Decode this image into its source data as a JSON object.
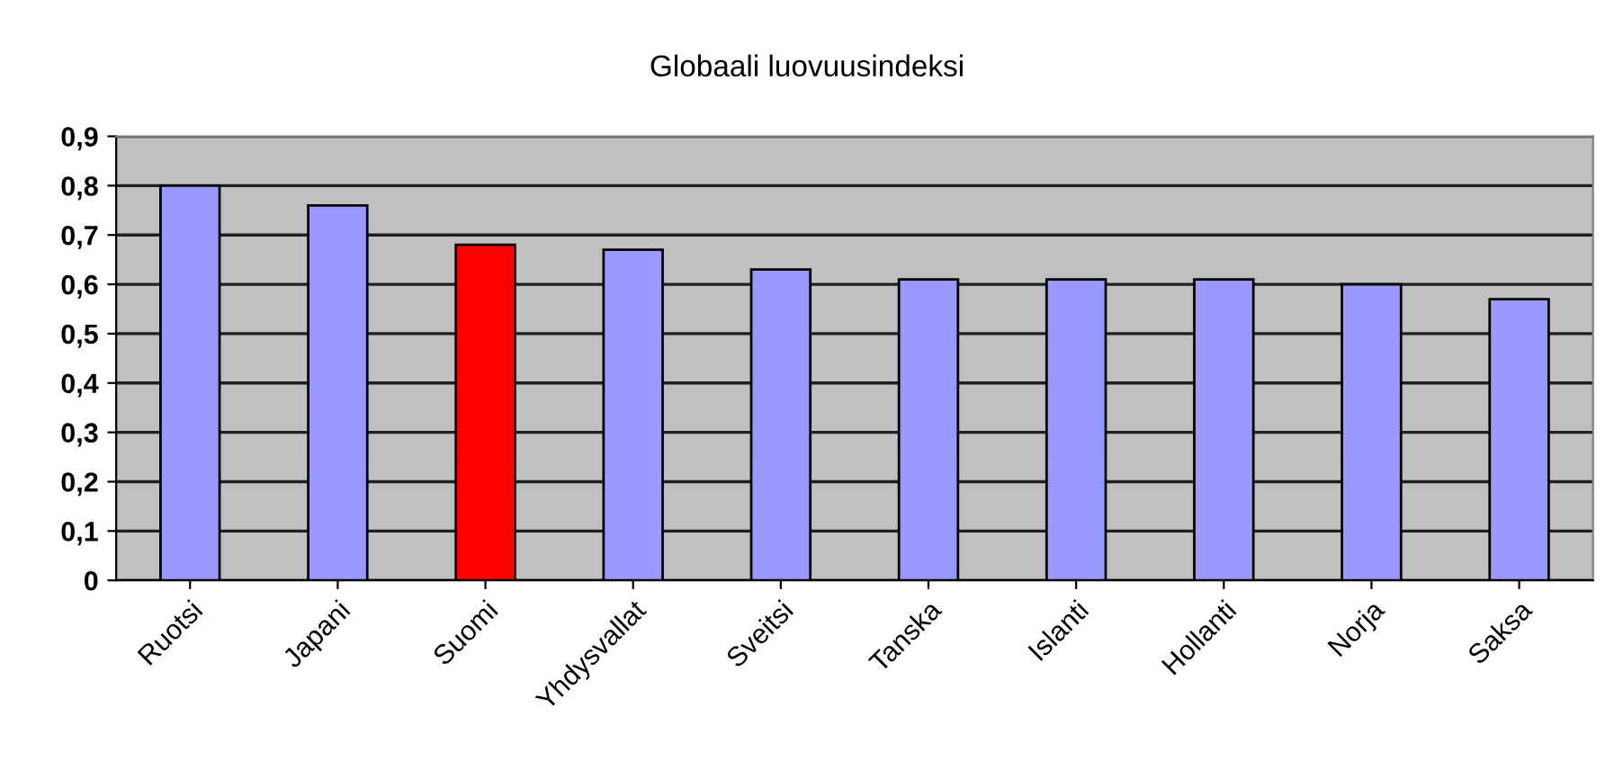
{
  "chart_data": {
    "type": "bar",
    "title": "Globaali luovuusindeksi",
    "categories": [
      "Ruotsi",
      "Japani",
      "Suomi",
      "Yhdysvallat",
      "Sveitsi",
      "Tanska",
      "Islanti",
      "Hollanti",
      "Norja",
      "Saksa"
    ],
    "values": [
      0.8,
      0.76,
      0.68,
      0.67,
      0.63,
      0.61,
      0.61,
      0.61,
      0.6,
      0.57
    ],
    "colors": [
      "#9999ff",
      "#9999ff",
      "#ff0000",
      "#9999ff",
      "#9999ff",
      "#9999ff",
      "#9999ff",
      "#9999ff",
      "#9999ff",
      "#9999ff"
    ],
    "ylim": [
      0,
      0.9
    ],
    "yticks": [
      {
        "value": 0,
        "label": "0"
      },
      {
        "value": 0.1,
        "label": "0,1"
      },
      {
        "value": 0.2,
        "label": "0,2"
      },
      {
        "value": 0.3,
        "label": "0,3"
      },
      {
        "value": 0.4,
        "label": "0,4"
      },
      {
        "value": 0.5,
        "label": "0,5"
      },
      {
        "value": 0.6,
        "label": "0,6"
      },
      {
        "value": 0.7,
        "label": "0,7"
      },
      {
        "value": 0.8,
        "label": "0,8"
      },
      {
        "value": 0.9,
        "label": "0,9"
      }
    ],
    "grid": "y",
    "legend": false
  }
}
